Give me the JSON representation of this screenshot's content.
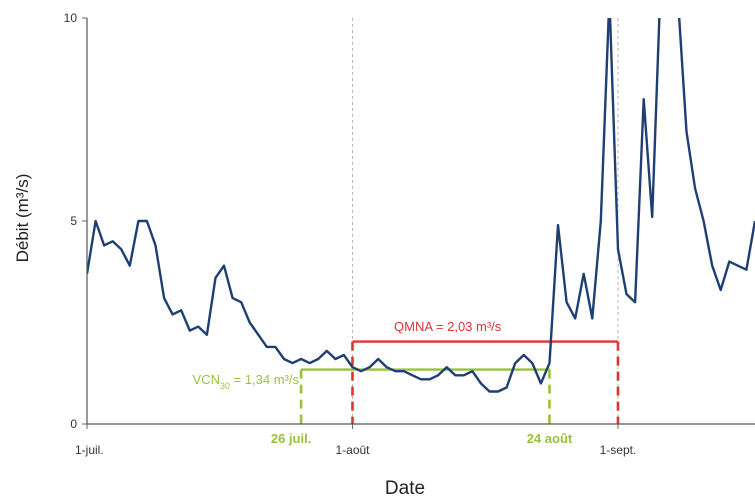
{
  "chart_data": {
    "type": "line",
    "xlabel": "Date",
    "ylabel": "Débit (m³/s)",
    "ylim": [
      0,
      10
    ],
    "xlim": [
      "2000-07-01",
      "2000-09-17"
    ],
    "yticks": [
      {
        "value": 0,
        "label": "0"
      },
      {
        "value": 5,
        "label": "5"
      },
      {
        "value": 10,
        "label": "10"
      }
    ],
    "xticks": [
      {
        "date": "2000-07-01",
        "label": "1-juil."
      },
      {
        "date": "2000-08-01",
        "label": "1-août"
      },
      {
        "date": "2000-09-01",
        "label": "1-sept."
      }
    ],
    "grid": "vertical-dashed-at-month-ticks",
    "colors": {
      "series": "#1f3f73",
      "qmna": "#e03434",
      "vcn30": "#99c23a"
    },
    "series": [
      {
        "x": [
          "2000-07-01",
          "2000-07-02",
          "2000-07-03",
          "2000-07-04",
          "2000-07-05",
          "2000-07-06",
          "2000-07-07",
          "2000-07-08",
          "2000-07-09",
          "2000-07-10",
          "2000-07-11",
          "2000-07-12",
          "2000-07-13",
          "2000-07-14",
          "2000-07-15",
          "2000-07-16",
          "2000-07-17",
          "2000-07-18",
          "2000-07-19",
          "2000-07-20",
          "2000-07-21",
          "2000-07-22",
          "2000-07-23",
          "2000-07-24",
          "2000-07-25",
          "2000-07-26",
          "2000-07-27",
          "2000-07-28",
          "2000-07-29",
          "2000-07-30",
          "2000-07-31",
          "2000-08-01",
          "2000-08-02",
          "2000-08-03",
          "2000-08-04",
          "2000-08-05",
          "2000-08-06",
          "2000-08-07",
          "2000-08-08",
          "2000-08-09",
          "2000-08-10",
          "2000-08-11",
          "2000-08-12",
          "2000-08-13",
          "2000-08-14",
          "2000-08-15",
          "2000-08-16",
          "2000-08-17",
          "2000-08-18",
          "2000-08-19",
          "2000-08-20",
          "2000-08-21",
          "2000-08-22",
          "2000-08-23",
          "2000-08-24",
          "2000-08-25",
          "2000-08-26",
          "2000-08-27",
          "2000-08-28",
          "2000-08-29",
          "2000-08-30",
          "2000-08-31",
          "2000-09-01",
          "2000-09-02",
          "2000-09-03",
          "2000-09-04",
          "2000-09-05",
          "2000-09-06",
          "2000-09-07",
          "2000-09-08",
          "2000-09-09",
          "2000-09-10",
          "2000-09-11",
          "2000-09-12",
          "2000-09-13",
          "2000-09-14",
          "2000-09-15",
          "2000-09-16",
          "2000-09-17"
        ],
        "y": [
          3.7,
          5.0,
          4.4,
          4.5,
          4.3,
          3.9,
          5.0,
          5.0,
          4.4,
          3.1,
          2.7,
          2.8,
          2.3,
          2.4,
          2.2,
          3.6,
          3.9,
          3.1,
          3.0,
          2.5,
          2.2,
          1.9,
          1.9,
          1.6,
          1.5,
          1.6,
          1.5,
          1.6,
          1.8,
          1.6,
          1.7,
          1.4,
          1.3,
          1.4,
          1.6,
          1.4,
          1.3,
          1.3,
          1.2,
          1.1,
          1.1,
          1.2,
          1.4,
          1.2,
          1.2,
          1.3,
          1.0,
          0.8,
          0.8,
          0.9,
          1.5,
          1.7,
          1.5,
          1.0,
          1.5,
          4.9,
          3.0,
          2.6,
          3.7,
          2.6,
          5.0,
          10.5,
          4.3,
          3.2,
          3.0,
          8.0,
          5.1,
          11.0,
          11.2,
          10.5,
          7.2,
          5.8,
          5.0,
          3.9,
          3.3,
          4.0,
          3.9,
          3.8,
          5.0
        ]
      }
    ],
    "annotations": {
      "qmna": {
        "label": "QMNA = 2,03 m³/s",
        "value": 2.03,
        "start": "2000-08-01",
        "end": "2000-09-01"
      },
      "vcn30": {
        "label": "VCN30 = 1,34 m³/s",
        "label_main": "VCN",
        "label_sub": "30",
        "label_rest": " = 1,34 m³/s",
        "value": 1.34,
        "start": "2000-07-26",
        "end": "2000-08-24",
        "start_label": "26 juil.",
        "end_label": "24 août"
      }
    }
  }
}
